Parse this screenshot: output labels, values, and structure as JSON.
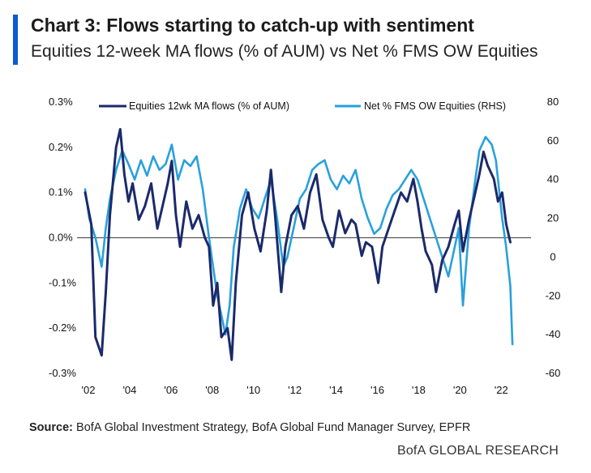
{
  "header": {
    "title": "Chart 3: Flows starting to catch-up with sentiment",
    "subtitle": "Equities 12-week MA flows (% of AUM) vs Net % FMS OW Equities"
  },
  "colors": {
    "accent": "#0b5bd3",
    "flows": "#1b2a6b",
    "fms": "#2aa0dc",
    "zero_line": "#555555"
  },
  "chart_data": {
    "type": "line",
    "title": "Flows starting to catch-up with sentiment",
    "xlabel": "",
    "ylabel_left": "Equities 12wk MA flows (% of AUM)",
    "ylabel_right": "Net % FMS OW Equities",
    "legend_position": "top",
    "x_tick_labels": [
      "'02",
      "'04",
      "'06",
      "'08",
      "'10",
      "'12",
      "'14",
      "'16",
      "'18",
      "'20",
      "'22"
    ],
    "x_ticks": [
      2002,
      2004,
      2006,
      2008,
      2010,
      2012,
      2014,
      2016,
      2018,
      2020,
      2022
    ],
    "xlim": [
      2002,
      2023.6
    ],
    "ylim_left": [
      -0.3,
      0.3
    ],
    "ylim_right": [
      -60,
      80
    ],
    "left_tick_labels": [
      "0.3%",
      "0.2%",
      "0.1%",
      "0.0%",
      "-0.1%",
      "-0.2%",
      "-0.3%"
    ],
    "left_ticks": [
      0.3,
      0.2,
      0.1,
      0.0,
      -0.1,
      -0.2,
      -0.3
    ],
    "right_tick_labels": [
      "80",
      "60",
      "40",
      "20",
      "0",
      "-20",
      "-40",
      "-60"
    ],
    "right_ticks": [
      80,
      60,
      40,
      20,
      0,
      -20,
      -40,
      -60
    ],
    "series": [
      {
        "name": "Equities 12wk MA flows (% of AUM)",
        "axis": "left",
        "x": [
          2002.0,
          2002.3,
          2002.5,
          2002.8,
          2003.0,
          2003.2,
          2003.5,
          2003.7,
          2003.9,
          2004.1,
          2004.3,
          2004.6,
          2004.9,
          2005.2,
          2005.5,
          2005.8,
          2006.0,
          2006.2,
          2006.4,
          2006.6,
          2006.9,
          2007.2,
          2007.5,
          2007.8,
          2008.0,
          2008.2,
          2008.4,
          2008.6,
          2008.9,
          2009.1,
          2009.3,
          2009.6,
          2009.9,
          2010.2,
          2010.5,
          2010.8,
          2011.0,
          2011.2,
          2011.5,
          2011.7,
          2012.0,
          2012.3,
          2012.6,
          2012.9,
          2013.2,
          2013.5,
          2013.8,
          2014.0,
          2014.3,
          2014.6,
          2014.9,
          2015.1,
          2015.4,
          2015.6,
          2015.9,
          2016.2,
          2016.4,
          2016.7,
          2017.0,
          2017.3,
          2017.6,
          2017.9,
          2018.1,
          2018.3,
          2018.5,
          2018.8,
          2019.0,
          2019.3,
          2019.6,
          2019.9,
          2020.1,
          2020.3,
          2020.6,
          2020.9,
          2021.1,
          2021.3,
          2021.5,
          2021.8,
          2022.0,
          2022.2,
          2022.4,
          2022.6
        ],
        "values": [
          0.1,
          0.03,
          -0.22,
          -0.26,
          -0.12,
          0.05,
          0.2,
          0.24,
          0.14,
          0.08,
          0.12,
          0.04,
          0.07,
          0.12,
          0.02,
          0.08,
          0.12,
          0.17,
          0.05,
          -0.02,
          0.08,
          0.02,
          0.05,
          0.0,
          -0.02,
          -0.15,
          -0.1,
          -0.22,
          -0.2,
          -0.27,
          -0.1,
          0.05,
          0.1,
          0.02,
          -0.03,
          0.06,
          0.15,
          0.05,
          -0.12,
          -0.02,
          0.05,
          0.07,
          0.02,
          0.1,
          0.14,
          0.04,
          0.0,
          -0.02,
          0.06,
          0.01,
          0.04,
          0.03,
          -0.04,
          -0.01,
          -0.02,
          -0.1,
          -0.02,
          0.02,
          0.06,
          0.1,
          0.08,
          0.13,
          0.08,
          0.02,
          -0.03,
          -0.06,
          -0.12,
          -0.05,
          -0.02,
          0.03,
          0.06,
          -0.03,
          0.04,
          0.1,
          0.14,
          0.19,
          0.16,
          0.13,
          0.08,
          0.1,
          0.03,
          -0.01
        ]
      },
      {
        "name": "Net % FMS OW Equities (RHS)",
        "axis": "right",
        "x": [
          2002.0,
          2002.2,
          2002.5,
          2002.8,
          2003.0,
          2003.2,
          2003.5,
          2003.8,
          2004.1,
          2004.4,
          2004.7,
          2005.0,
          2005.3,
          2005.6,
          2005.9,
          2006.2,
          2006.5,
          2006.8,
          2007.1,
          2007.4,
          2007.7,
          2008.0,
          2008.2,
          2008.4,
          2008.6,
          2008.8,
          2009.0,
          2009.2,
          2009.5,
          2009.8,
          2010.1,
          2010.4,
          2010.7,
          2011.0,
          2011.3,
          2011.6,
          2011.8,
          2012.1,
          2012.4,
          2012.7,
          2013.0,
          2013.3,
          2013.6,
          2013.9,
          2014.2,
          2014.5,
          2014.8,
          2015.1,
          2015.4,
          2015.7,
          2016.0,
          2016.3,
          2016.6,
          2016.9,
          2017.2,
          2017.5,
          2017.8,
          2018.1,
          2018.4,
          2018.7,
          2019.0,
          2019.3,
          2019.6,
          2019.9,
          2020.1,
          2020.3,
          2020.6,
          2020.9,
          2021.1,
          2021.4,
          2021.7,
          2021.9,
          2022.0,
          2022.2,
          2022.4,
          2022.6,
          2022.7
        ],
        "values": [
          35,
          20,
          10,
          -5,
          15,
          30,
          45,
          55,
          48,
          40,
          50,
          42,
          52,
          45,
          48,
          58,
          40,
          50,
          47,
          52,
          35,
          10,
          -5,
          -20,
          -30,
          -40,
          -25,
          5,
          25,
          35,
          25,
          20,
          30,
          40,
          20,
          -5,
          0,
          15,
          30,
          35,
          45,
          48,
          50,
          40,
          35,
          42,
          38,
          45,
          30,
          20,
          12,
          15,
          25,
          32,
          35,
          40,
          45,
          40,
          30,
          20,
          10,
          0,
          -10,
          5,
          15,
          -25,
          15,
          40,
          55,
          62,
          58,
          50,
          40,
          20,
          5,
          -15,
          -45
        ]
      }
    ]
  },
  "footer": {
    "source_label": "Source:",
    "source_text": " BofA Global Investment Strategy, BofA Global Fund Manager Survey, EPFR",
    "brand": "BofA GLOBAL RESEARCH"
  }
}
